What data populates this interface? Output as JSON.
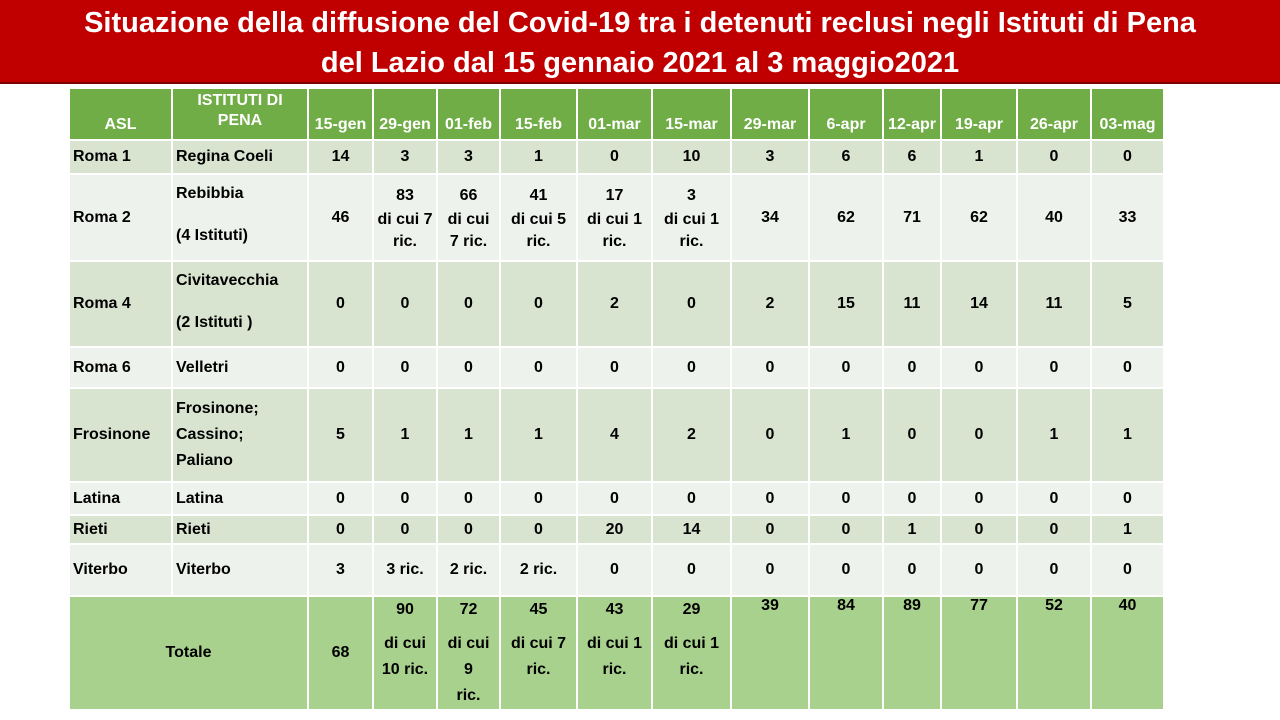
{
  "title": {
    "line1": "Situazione della diffusione del Covid-19 tra i detenuti reclusi negli Istituti di Pena",
    "line2": "del Lazio dal 15 gennaio 2021 al 3 maggio2021"
  },
  "colors": {
    "banner": "#c00000",
    "header": "#70ad47",
    "row_dark": "#d8e4d0",
    "row_light": "#eef2ec",
    "total": "#a9d18e"
  },
  "table": {
    "headers": {
      "asl": "ASL",
      "istituti_line1": "ISTITUTI DI",
      "istituti_line2": "PENA",
      "dates": [
        "15-gen",
        "29-gen",
        "01-feb",
        "15-feb",
        "01-mar",
        "15-mar",
        "29-mar",
        "6-apr",
        "12-apr",
        "19-apr",
        "26-apr",
        "03-mag"
      ]
    },
    "rows": [
      {
        "asl": "Roma 1",
        "ist1": "Regina Coeli",
        "ist2": "",
        "vals": [
          "14",
          "3",
          "3",
          "1",
          "0",
          "10",
          "3",
          "6",
          "6",
          "1",
          "0",
          "0"
        ]
      },
      {
        "asl": "Roma 2",
        "ist1": "Rebibbia",
        "ist2": "(4 Istituti)",
        "vals": [
          "46",
          "83",
          "66",
          "41",
          "17",
          "3",
          "34",
          "62",
          "71",
          "62",
          "40",
          "33"
        ],
        "notes": [
          "",
          "di cui 7 ric.",
          "di cui 7 ric.",
          "di cui 5 ric.",
          "di cui 1 ric.",
          "di cui 1 ric.",
          "",
          "",
          "",
          "",
          "",
          ""
        ]
      },
      {
        "asl": "Roma 4",
        "ist1": "Civitavecchia",
        "ist2": "(2 Istituti )",
        "vals": [
          "0",
          "0",
          "0",
          "0",
          "2",
          "0",
          "2",
          "15",
          "11",
          "14",
          "11",
          "5"
        ]
      },
      {
        "asl": "Roma 6",
        "ist1": "Velletri",
        "ist2": "",
        "vals": [
          "0",
          "0",
          "0",
          "0",
          "0",
          "0",
          "0",
          "0",
          "0",
          "0",
          "0",
          "0"
        ]
      },
      {
        "asl": "Frosinone",
        "ist1": "Frosinone;",
        "ist2": "Cassino;",
        "ist3": "Paliano",
        "vals": [
          "5",
          "1",
          "1",
          "1",
          "4",
          "2",
          "0",
          "1",
          "0",
          "0",
          "1",
          "1"
        ]
      },
      {
        "asl": "Latina",
        "ist1": "Latina",
        "ist2": "",
        "vals": [
          "0",
          "0",
          "0",
          "0",
          "0",
          "0",
          "0",
          "0",
          "0",
          "0",
          "0",
          "0"
        ]
      },
      {
        "asl": "Rieti",
        "ist1": "Rieti",
        "ist2": "",
        "vals": [
          "0",
          "0",
          "0",
          "0",
          "20",
          "14",
          "0",
          "0",
          "1",
          "0",
          "0",
          "1"
        ]
      },
      {
        "asl": "Viterbo",
        "ist1": "Viterbo",
        "ist2": "",
        "vals": [
          "3",
          "3 ric.",
          "2 ric.",
          "2 ric.",
          "0",
          "0",
          "0",
          "0",
          "0",
          "0",
          "0",
          "0"
        ]
      }
    ],
    "total": {
      "label": "Totale",
      "vals": [
        "68",
        "90",
        "72",
        "45",
        "43",
        "29",
        "39",
        "84",
        "89",
        "77",
        "52",
        "40"
      ],
      "notes1": [
        "",
        "di cui",
        "di cui 9",
        "di cui 7",
        "di cui 1",
        "di cui 1",
        "",
        "",
        "",
        "",
        "",
        ""
      ],
      "notes2": [
        "",
        "10 ric.",
        "ric.",
        "ric.",
        "ric.",
        "ric.",
        "",
        "",
        "",
        "",
        "",
        ""
      ]
    }
  }
}
